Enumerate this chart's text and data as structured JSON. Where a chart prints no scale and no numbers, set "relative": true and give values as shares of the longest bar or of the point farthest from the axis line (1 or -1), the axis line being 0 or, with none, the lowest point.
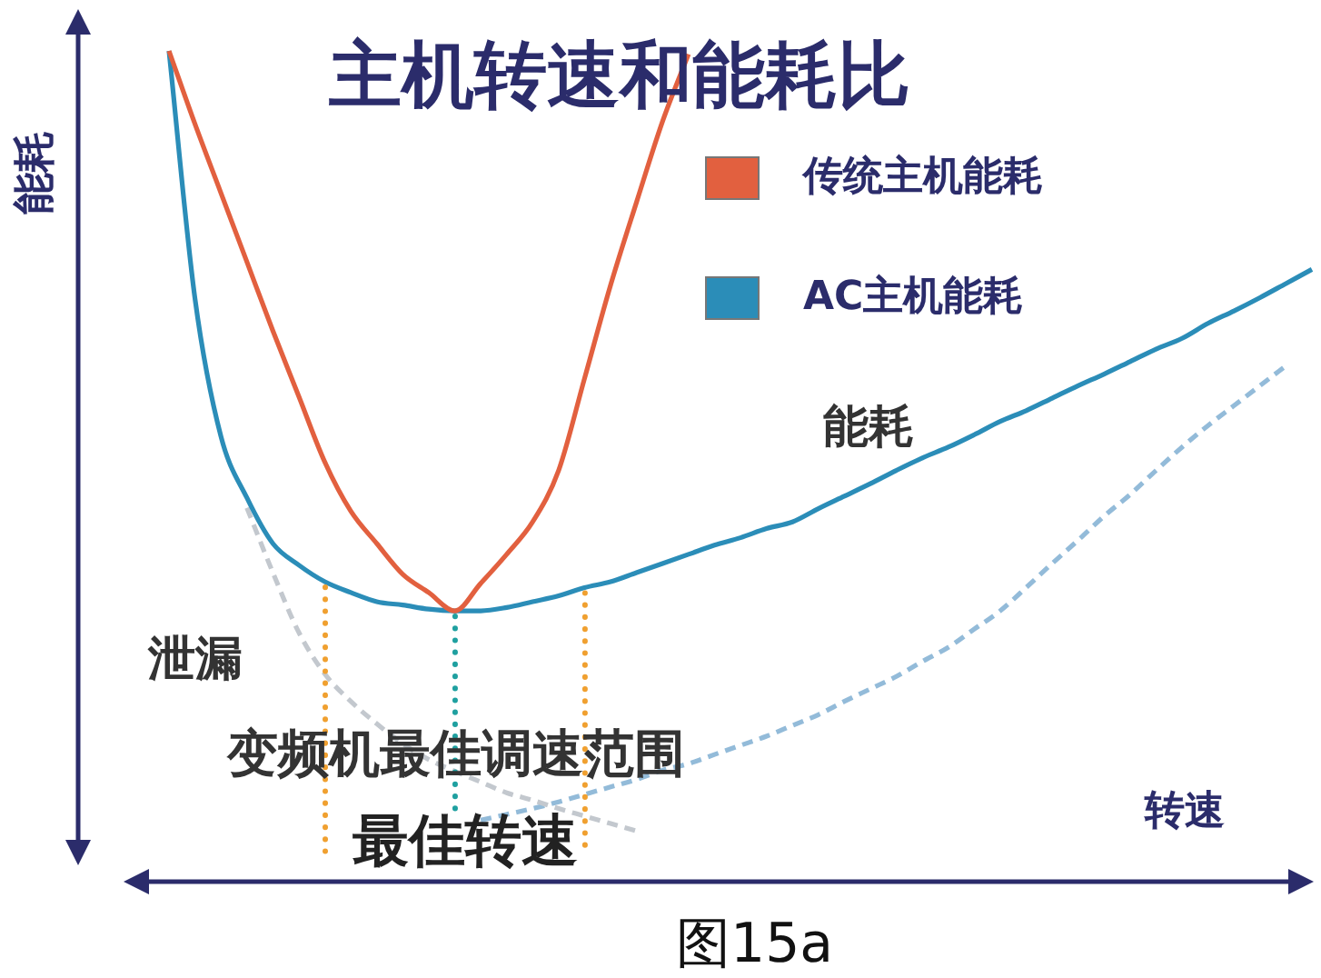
{
  "chart_data": {
    "type": "line",
    "title": "主机转速和能耗比",
    "xlabel": "转速",
    "ylabel": "能耗",
    "relative": true,
    "legend": "top right",
    "categories": [
      null,
      null,
      null,
      null,
      null,
      null,
      null,
      null,
      null,
      null,
      null,
      null,
      null,
      null,
      null,
      null,
      null,
      null,
      null,
      null,
      null,
      null,
      null,
      null,
      null,
      null,
      null,
      null,
      null,
      null,
      null,
      null,
      null,
      null,
      null,
      null,
      null,
      null,
      null,
      null,
      null,
      null,
      null,
      null,
      null
    ],
    "series": [
      {
        "name": "传统主机能耗",
        "color": "#e2603f",
        "values": [
          1,
          0.912,
          0.829,
          0.746,
          0.663,
          0.584,
          0.505,
          0.446,
          0.407,
          0.37,
          0.348,
          0.326,
          0.359,
          0.394,
          0.433,
          0.495,
          0.606,
          0.718,
          0.818,
          0.915,
          0.996,
          null,
          null,
          null,
          null,
          null,
          null,
          null,
          null,
          null,
          null,
          null,
          null,
          null,
          null,
          null,
          null,
          null,
          null,
          null,
          null,
          null,
          null,
          null,
          null
        ]
      },
      {
        "name": "AC主机能耗",
        "color": "#2b8db8",
        "values": [
          1,
          0.702,
          0.536,
          0.462,
          0.407,
          0.381,
          0.361,
          0.348,
          0.337,
          0.333,
          0.328,
          0.326,
          0.326,
          0.33,
          0.337,
          0.344,
          0.354,
          0.361,
          0.372,
          0.383,
          0.394,
          0.405,
          0.414,
          0.425,
          0.433,
          0.449,
          0.464,
          0.479,
          0.495,
          0.51,
          0.523,
          0.538,
          0.554,
          0.567,
          0.582,
          0.597,
          0.611,
          0.626,
          0.641,
          0.654,
          0.672,
          0.687,
          0.703,
          0.72,
          0.737
        ]
      },
      {
        "name": "泄漏",
        "color": "#c3c8ce",
        "line_style": "dashed",
        "values": [
          null,
          null,
          null,
          0.45,
          0.372,
          0.3,
          0.25,
          0.217,
          0.19,
          0.166,
          0.147,
          0.133,
          0.12,
          0.107,
          0.098,
          0.088,
          0.079,
          0.07,
          0.061,
          null,
          null,
          null,
          null,
          null,
          null,
          null,
          null,
          null,
          null,
          null,
          null,
          null,
          null,
          null,
          null,
          null,
          null,
          null,
          null,
          null,
          null,
          null,
          null,
          null,
          null
        ]
      },
      {
        "color": "#93bbd9",
        "line_style": "dashed",
        "values": [
          null,
          null,
          null,
          null,
          null,
          null,
          null,
          null,
          null,
          null,
          null,
          null,
          0.074,
          0.081,
          0.088,
          0.096,
          0.105,
          0.114,
          0.123,
          0.134,
          0.142,
          0.153,
          0.164,
          0.175,
          0.188,
          0.201,
          0.217,
          0.232,
          0.247,
          0.265,
          0.282,
          0.304,
          0.326,
          0.354,
          0.383,
          0.411,
          0.44,
          0.466,
          0.495,
          0.523,
          0.549,
          0.573,
          0.597,
          0.621,
          null
        ]
      }
    ],
    "annotations": [
      "能耗",
      "变频机最佳调速范围",
      "最佳转速",
      "图15a"
    ]
  }
}
